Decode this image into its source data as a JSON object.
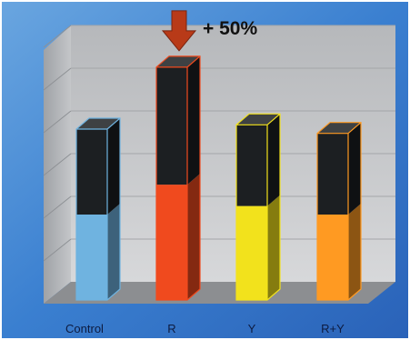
{
  "chart_data": {
    "type": "bar",
    "style": "3d-stacked",
    "categories": [
      "Control",
      "R",
      "Y",
      "R+Y"
    ],
    "series": [
      {
        "values": [
          2,
          2.7,
          2.2,
          2
        ]
      },
      {
        "values": [
          2,
          2.75,
          1.9,
          1.9
        ]
      }
    ],
    "bar_colors": [
      "#6fb3e0",
      "#f04a1e",
      "#f2e21c",
      "#ff9a22"
    ],
    "top_segment_color": "#1c1f22",
    "annotation": {
      "text": "+ 50%",
      "category": "R",
      "arrow_color": "#b83a18"
    },
    "ylim": [
      0,
      6
    ],
    "grid": true,
    "background_color": "#3a7fd0"
  }
}
